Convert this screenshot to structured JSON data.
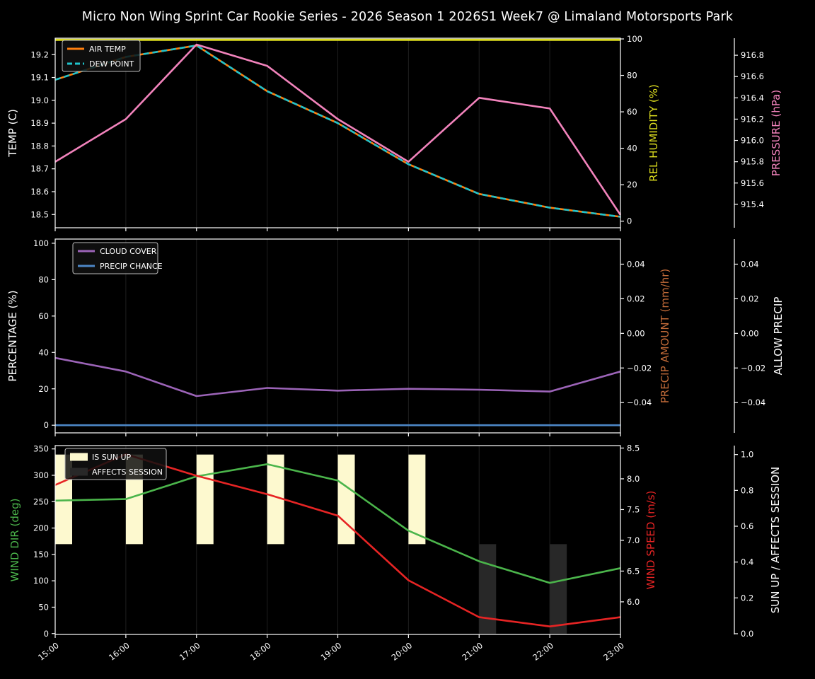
{
  "title": "Micro Non Wing Sprint Car Rookie Series - 2026 Season 1 2026S1 Week7 @ Limaland Motorsports Park",
  "x_axis": {
    "labels": [
      "15:00",
      "16:00",
      "17:00",
      "18:00",
      "19:00",
      "20:00",
      "21:00",
      "22:00",
      "23:00"
    ]
  },
  "style": {
    "background": "#000000",
    "text_color": "#ffffff",
    "grid_color": "#1f1f1f",
    "spine_color": "#ffffff",
    "legend_bg": "#101010",
    "legend_border": "#bbbbbb"
  },
  "chart_data": [
    {
      "type": "line",
      "key": "temp-humidity-pressure",
      "axes": {
        "left": {
          "label": "TEMP (C)",
          "color": "#ffffff",
          "range": [
            18.442,
            19.272
          ],
          "tick_values": [
            19.2,
            19.1,
            19.0,
            18.9,
            18.8,
            18.7,
            18.6,
            18.5
          ],
          "tick_labels": [
            "19.2",
            "19.1",
            "19.0",
            "18.9",
            "18.8",
            "18.7",
            "18.6",
            "18.5"
          ]
        },
        "right1": {
          "label": "REL HUMIDITY (%)",
          "color": "#dede1f",
          "range": [
            -3.6,
            100.4
          ],
          "tick_values": [
            100,
            80,
            60,
            40,
            20,
            0
          ],
          "tick_labels": [
            "100",
            "80",
            "60",
            "40",
            "20",
            "0"
          ]
        },
        "right2": {
          "label": "PRESSURE (hPa)",
          "color": "#f283bc",
          "range": [
            915.18,
            916.96
          ],
          "tick_values": [
            916.8,
            916.6,
            916.4,
            916.2,
            916.0,
            915.8,
            915.6,
            915.4
          ],
          "tick_labels": [
            "916.8",
            "916.6",
            "916.4",
            "916.2",
            "916.0",
            "915.8",
            "915.6",
            "915.4"
          ]
        }
      },
      "series": [
        {
          "name": "AIR TEMP",
          "key": "air-temp",
          "axis": "left",
          "color": "#ff7f0e",
          "dash": false,
          "width": 2.6,
          "values": [
            19.09,
            19.19,
            19.24,
            19.04,
            18.9,
            18.72,
            18.59,
            18.53,
            18.49
          ]
        },
        {
          "name": "DEW POINT",
          "key": "dew-point",
          "axis": "left",
          "color": "#1fc3cb",
          "dash": true,
          "width": 2.6,
          "values": [
            19.09,
            19.19,
            19.24,
            19.04,
            18.9,
            18.72,
            18.59,
            18.53,
            18.49
          ]
        },
        {
          "name": "REL HUMIDITY",
          "key": "rel-humidity",
          "axis": "right1",
          "color": "#dede1f",
          "dash": false,
          "width": 3,
          "values": [
            99.5,
            99.5,
            99.5,
            99.5,
            99.5,
            99.5,
            99.5,
            99.5,
            99.5
          ]
        },
        {
          "name": "PRESSURE",
          "key": "pressure",
          "axis": "right2",
          "color": "#f283bc",
          "dash": false,
          "width": 2.6,
          "values": [
            915.8,
            916.2,
            916.9,
            916.7,
            916.2,
            915.8,
            916.4,
            916.3,
            915.3
          ]
        }
      ],
      "bars": [],
      "legend": {
        "items": [
          {
            "label": "AIR TEMP",
            "color": "#ff7f0e",
            "type": "line"
          },
          {
            "label": "DEW POINT",
            "color": "#1fc3cb",
            "type": "dash"
          }
        ]
      }
    },
    {
      "type": "line",
      "key": "cloud-precip",
      "axes": {
        "left": {
          "label": "PERCENTAGE (%)",
          "color": "#ffffff",
          "range": [
            -4.2,
            102.3
          ],
          "tick_values": [
            100,
            80,
            60,
            40,
            20,
            0
          ],
          "tick_labels": [
            "100",
            "80",
            "60",
            "40",
            "20",
            "0"
          ]
        },
        "right1": {
          "label": "PRECIP AMOUNT (mm/hr)",
          "color": "#c06a38",
          "range": [
            -0.0575,
            0.0545
          ],
          "tick_values": [
            0.04,
            0.02,
            0.0,
            -0.02,
            -0.04
          ],
          "tick_labels": [
            "0.04",
            "0.02",
            "0.00",
            "−0.02",
            "−0.04"
          ]
        },
        "right2": {
          "label": "ALLOW PRECIP",
          "color": "#ffffff",
          "range": [
            -0.0575,
            0.0545
          ],
          "tick_values": [
            0.04,
            0.02,
            0.0,
            -0.02,
            -0.04
          ],
          "tick_labels": [
            "0.04",
            "0.02",
            "0.00",
            "−0.02",
            "−0.04"
          ]
        }
      },
      "series": [
        {
          "name": "CLOUD COVER",
          "key": "cloud-cover",
          "axis": "left",
          "color": "#9c64b8",
          "dash": false,
          "width": 2.6,
          "values": [
            37,
            29.5,
            16,
            20.5,
            19,
            20,
            19.5,
            18.5,
            29.5
          ]
        },
        {
          "name": "PRECIP CHANCE",
          "key": "precip-chance",
          "axis": "left",
          "color": "#4d87c7",
          "dash": false,
          "width": 2.6,
          "values": [
            0,
            0,
            0,
            0,
            0,
            0,
            0,
            0,
            0
          ]
        }
      ],
      "bars": [],
      "legend": {
        "items": [
          {
            "label": "CLOUD COVER",
            "color": "#9c64b8",
            "type": "line"
          },
          {
            "label": "PRECIP CHANCE",
            "color": "#4d87c7",
            "type": "line"
          }
        ]
      }
    },
    {
      "type": "line",
      "key": "wind-sun",
      "axes": {
        "left": {
          "label": "WIND DIR (deg)",
          "color": "#4bb54b",
          "range": [
            -1.7,
            356.3
          ],
          "tick_values": [
            350,
            300,
            250,
            200,
            150,
            100,
            50,
            0
          ],
          "tick_labels": [
            "350",
            "300",
            "250",
            "200",
            "150",
            "100",
            "50",
            "0"
          ]
        },
        "right1": {
          "label": "WIND SPEED (m/s)",
          "color": "#e62424",
          "range": [
            5.47,
            8.54
          ],
          "tick_values": [
            8.5,
            8.0,
            7.5,
            7.0,
            6.5,
            6.0
          ],
          "tick_labels": [
            "8.5",
            "8.0",
            "7.5",
            "7.0",
            "6.5",
            "6.0"
          ]
        },
        "right2": {
          "label": "SUN UP / AFFECTS SESSION",
          "color": "#ffffff",
          "range": [
            -0.004,
            1.05
          ],
          "tick_values": [
            1.0,
            0.8,
            0.6,
            0.4,
            0.2,
            0.0
          ],
          "tick_labels": [
            "1.0",
            "0.8",
            "0.6",
            "0.4",
            "0.2",
            "0.0"
          ]
        }
      },
      "series": [
        {
          "name": "WIND DIR",
          "key": "wind-dir",
          "axis": "left",
          "color": "#4bb54b",
          "dash": false,
          "width": 2.6,
          "values": [
            252,
            255,
            298,
            321,
            290,
            195,
            137,
            96,
            124
          ]
        },
        {
          "name": "WIND SPEED",
          "key": "wind-speed",
          "axis": "right1",
          "color": "#e62424",
          "dash": false,
          "width": 2.6,
          "values": [
            7.9,
            8.4,
            8.05,
            7.75,
            7.4,
            6.35,
            5.75,
            5.6,
            5.75
          ]
        }
      ],
      "bars": [
        {
          "name": "IS SUN UP",
          "key": "is-sun-up",
          "axis": "right2",
          "color": "#fdf9cf",
          "hour_indices": [
            0,
            1,
            2,
            3,
            4,
            5
          ],
          "from": 0.5,
          "to": 1.0
        },
        {
          "name": "AFFECTS SESSION",
          "key": "affects-session",
          "axis": "right2",
          "color": "#282828",
          "hour_indices": [
            6,
            7
          ],
          "from": 0.0,
          "to": 0.5
        }
      ],
      "legend": {
        "items": [
          {
            "label": "IS SUN UP",
            "color": "#fdf9cf",
            "type": "patch"
          },
          {
            "label": "AFFECTS SESSION",
            "color": "#282828",
            "type": "patch"
          }
        ]
      }
    }
  ]
}
